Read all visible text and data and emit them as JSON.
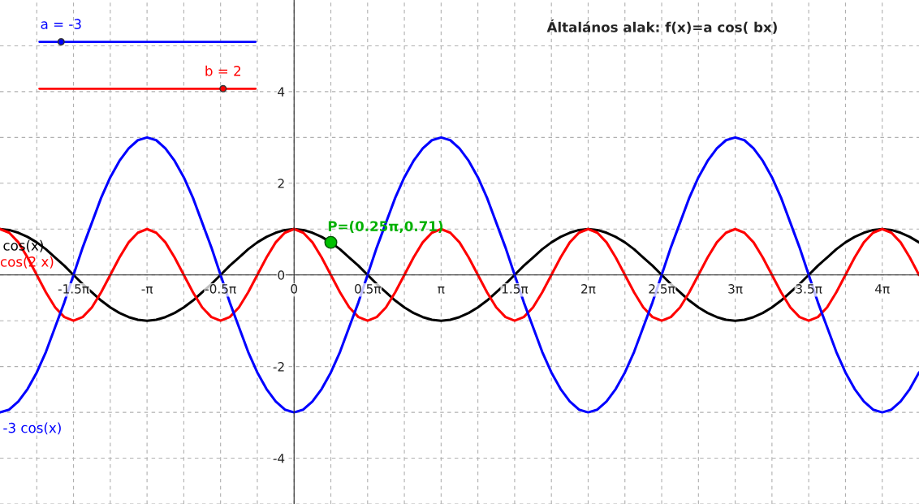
{
  "chart_data": {
    "type": "line",
    "title": "Általános alak: f(x)=a cos( bx)",
    "x": [
      -6.2832,
      -6.0868,
      -5.8905,
      -5.6941,
      -5.4978,
      -5.3014,
      -5.1051,
      -4.9087,
      -4.7124,
      -4.516,
      -4.3197,
      -4.1233,
      -3.927,
      -3.7306,
      -3.5343,
      -3.3379,
      -3.1416,
      -2.9452,
      -2.7489,
      -2.5525,
      -2.3562,
      -2.1598,
      -1.9635,
      -1.7671,
      -1.5708,
      -1.3744,
      -1.1781,
      -0.9817,
      -0.7854,
      -0.589,
      -0.3927,
      -0.1963,
      0,
      0.1963,
      0.3927,
      0.589,
      0.7854,
      0.9817,
      1.1781,
      1.3744,
      1.5708,
      1.7671,
      1.9635,
      2.1598,
      2.3562,
      2.5525,
      2.7489,
      2.9452,
      3.1416,
      3.3379,
      3.5343,
      3.7306,
      3.927,
      4.1233,
      4.3197,
      4.516,
      4.7124,
      4.9087,
      5.1051,
      5.3014,
      5.4978,
      5.6941,
      5.8905,
      6.0868,
      6.2832,
      6.4795,
      6.6759,
      6.8722,
      7.0686,
      7.2649,
      7.4613,
      7.6576,
      7.854,
      8.0503,
      8.2467,
      8.443,
      8.6394,
      8.8357,
      9.0321,
      9.2284,
      9.4248,
      9.6211,
      9.8175,
      10.0138,
      10.2102,
      10.4065,
      10.6029,
      10.7992,
      10.9956,
      11.1919,
      11.3883,
      11.5846,
      11.781,
      11.9773,
      12.1737,
      12.37,
      12.5664,
      12.7627,
      12.9591,
      13.1554,
      13.3518
    ],
    "series": [
      {
        "name": "cos(x)",
        "color": "#000000",
        "values": [
          1,
          0.98,
          0.92,
          0.83,
          0.71,
          0.56,
          0.38,
          0.2,
          0,
          -0.2,
          -0.38,
          -0.56,
          -0.71,
          -0.83,
          -0.92,
          -0.98,
          -1,
          -0.98,
          -0.92,
          -0.83,
          -0.71,
          -0.56,
          -0.38,
          -0.2,
          0,
          0.2,
          0.38,
          0.56,
          0.71,
          0.83,
          0.92,
          0.98,
          1,
          0.98,
          0.92,
          0.83,
          0.71,
          0.56,
          0.38,
          0.2,
          0,
          -0.2,
          -0.38,
          -0.56,
          -0.71,
          -0.83,
          -0.92,
          -0.98,
          -1,
          -0.98,
          -0.92,
          -0.83,
          -0.71,
          -0.56,
          -0.38,
          -0.2,
          0,
          0.2,
          0.38,
          0.56,
          0.71,
          0.83,
          0.92,
          0.98,
          1,
          0.98,
          0.92,
          0.83,
          0.71,
          0.56,
          0.38,
          0.2,
          0,
          -0.2,
          -0.38,
          -0.56,
          -0.71,
          -0.83,
          -0.92,
          -0.98,
          -1,
          -0.98,
          -0.92,
          -0.83,
          -0.71,
          -0.56,
          -0.38,
          -0.2,
          0,
          0.2,
          0.38,
          0.56,
          0.71,
          0.83,
          0.92,
          0.98,
          1,
          0.98,
          0.92,
          0.83,
          0.71
        ]
      },
      {
        "name": "cos(2 x)",
        "color": "#ff0000",
        "values": [
          1,
          0.92,
          0.71,
          0.38,
          0,
          -0.38,
          -0.71,
          -0.92,
          -1,
          -0.92,
          -0.71,
          -0.38,
          0,
          0.38,
          0.71,
          0.92,
          1,
          0.92,
          0.71,
          0.38,
          0,
          -0.38,
          -0.71,
          -0.92,
          -1,
          -0.92,
          -0.71,
          -0.38,
          0,
          0.38,
          0.71,
          0.92,
          1,
          0.92,
          0.71,
          0.38,
          0,
          -0.38,
          -0.71,
          -0.92,
          -1,
          -0.92,
          -0.71,
          -0.38,
          0,
          0.38,
          0.71,
          0.92,
          1,
          0.92,
          0.71,
          0.38,
          0,
          -0.38,
          -0.71,
          -0.92,
          -1,
          -0.92,
          -0.71,
          -0.38,
          0,
          0.38,
          0.71,
          0.92,
          1,
          0.92,
          0.71,
          0.38,
          0,
          -0.38,
          -0.71,
          -0.92,
          -1,
          -0.92,
          -0.71,
          -0.38,
          0,
          0.38,
          0.71,
          0.92,
          1,
          0.92,
          0.71,
          0.38,
          0,
          -0.38,
          -0.71,
          -0.92,
          -1,
          -0.92,
          -0.71,
          -0.38,
          0,
          0.38,
          0.71,
          0.92,
          1,
          0.92,
          0.71,
          0.38,
          0
        ]
      },
      {
        "name": "-3 cos(x)",
        "color": "#0000ff",
        "values": [
          -3,
          -2.94,
          -2.76,
          -2.49,
          -2.13,
          -1.68,
          -1.14,
          -0.6,
          0,
          0.6,
          1.14,
          1.68,
          2.13,
          2.49,
          2.76,
          2.94,
          3,
          2.94,
          2.76,
          2.49,
          2.13,
          1.68,
          1.14,
          0.6,
          0,
          -0.6,
          -1.14,
          -1.68,
          -2.13,
          -2.49,
          -2.76,
          -2.94,
          -3,
          -2.94,
          -2.76,
          -2.49,
          -2.13,
          -1.68,
          -1.14,
          -0.6,
          0,
          0.6,
          1.14,
          1.68,
          2.13,
          2.49,
          2.76,
          2.94,
          3,
          2.94,
          2.76,
          2.49,
          2.13,
          1.68,
          1.14,
          0.6,
          0,
          -0.6,
          -1.14,
          -1.68,
          -2.13,
          -2.49,
          -2.76,
          -2.94,
          -3,
          -2.94,
          -2.76,
          -2.49,
          -2.13,
          -1.68,
          -1.14,
          -0.6,
          0,
          0.6,
          1.14,
          1.68,
          2.13,
          2.49,
          2.76,
          2.94,
          3,
          2.94,
          2.76,
          2.49,
          2.13,
          1.68,
          1.14,
          0.6,
          0,
          -0.6,
          -1.14,
          -1.68,
          -2.13,
          -2.49,
          -2.76,
          -2.94,
          -3,
          -2.94,
          -2.76,
          -2.49,
          -2.13
        ]
      },
      {
        "type": "scatter",
        "marker": "circle",
        "color": "#00c000",
        "x": [
          0.7854
        ],
        "values": [
          0.71
        ]
      }
    ],
    "annotations": [
      {
        "text": "P=(0.25π,0.71)",
        "x": 0.7854,
        "y": 0.71
      },
      "a = -3",
      "b = 2"
    ],
    "xlim": [
      -6.2832,
      13.3518
    ],
    "ylim": [
      -5,
      6
    ],
    "xticks": [
      {
        "value": -5.4978,
        "label": null
      },
      {
        "value": -4.7124,
        "label": "-1.5π"
      },
      {
        "value": -3.927,
        "label": null
      },
      {
        "value": -3.1416,
        "label": "-π"
      },
      {
        "value": -2.3562,
        "label": null
      },
      {
        "value": -1.5708,
        "label": "-0.5π"
      },
      {
        "value": -0.7854,
        "label": null
      },
      0,
      {
        "value": 0.7854,
        "label": null
      },
      {
        "value": 1.5708,
        "label": "0.5π"
      },
      {
        "value": 2.3562,
        "label": null
      },
      {
        "value": 3.1416,
        "label": "π"
      },
      {
        "value": 3.927,
        "label": null
      },
      {
        "value": 4.7124,
        "label": "1.5π"
      },
      {
        "value": 5.4978,
        "label": null
      },
      {
        "value": 6.2832,
        "label": "2π"
      },
      {
        "value": 7.0686,
        "label": null
      },
      {
        "value": 7.854,
        "label": "2.5π"
      },
      {
        "value": 8.6394,
        "label": null
      },
      {
        "value": 9.4248,
        "label": "3π"
      },
      {
        "value": 10.2102,
        "label": null
      },
      {
        "value": 10.9956,
        "label": "3.5π"
      },
      {
        "value": 11.781,
        "label": null
      },
      {
        "value": 12.5664,
        "label": "4π"
      }
    ],
    "yticks": [
      {
        "value": -5,
        "label": null
      },
      -4,
      {
        "value": -3,
        "label": null
      },
      -2,
      {
        "value": -1,
        "label": null
      },
      0,
      {
        "value": 1,
        "label": null
      },
      2,
      {
        "value": 3,
        "label": null
      },
      4,
      {
        "value": 5,
        "label": null
      }
    ],
    "grid": true,
    "line_style": "solid",
    "legend": false
  }
}
